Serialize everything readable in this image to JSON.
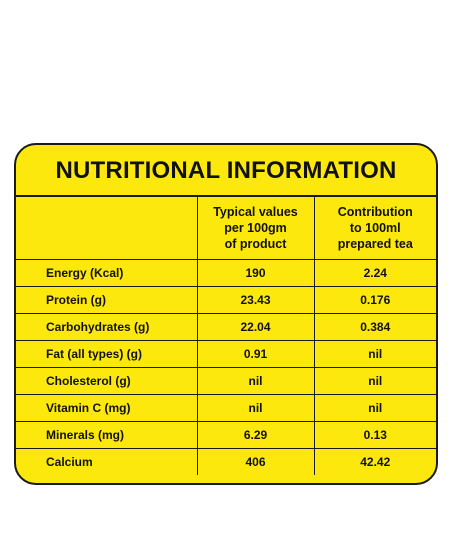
{
  "title": "NUTRITIONAL INFORMATION",
  "columns": {
    "typical": [
      "Typical values",
      "per 100gm",
      "of product"
    ],
    "contribution": [
      "Contribution",
      "to 100ml",
      "prepared tea"
    ]
  },
  "rows": [
    {
      "name": "Energy (Kcal)",
      "typical": "190",
      "contribution": "2.24"
    },
    {
      "name": "Protein (g)",
      "typical": "23.43",
      "contribution": "0.176"
    },
    {
      "name": "Carbohydrates (g)",
      "typical": "22.04",
      "contribution": "0.384"
    },
    {
      "name": "Fat (all types) (g)",
      "typical": "0.91",
      "contribution": "nil"
    },
    {
      "name": "Cholesterol (g)",
      "typical": "nil",
      "contribution": "nil"
    },
    {
      "name": "Vitamin C (mg)",
      "typical": "nil",
      "contribution": "nil"
    },
    {
      "name": "Minerals (mg)",
      "typical": "6.29",
      "contribution": "0.13"
    },
    {
      "name": "Calcium",
      "typical": "406",
      "contribution": "42.42"
    }
  ],
  "colors": {
    "background": "#fce80c",
    "border": "#1a1a1a",
    "text": "#111111"
  }
}
